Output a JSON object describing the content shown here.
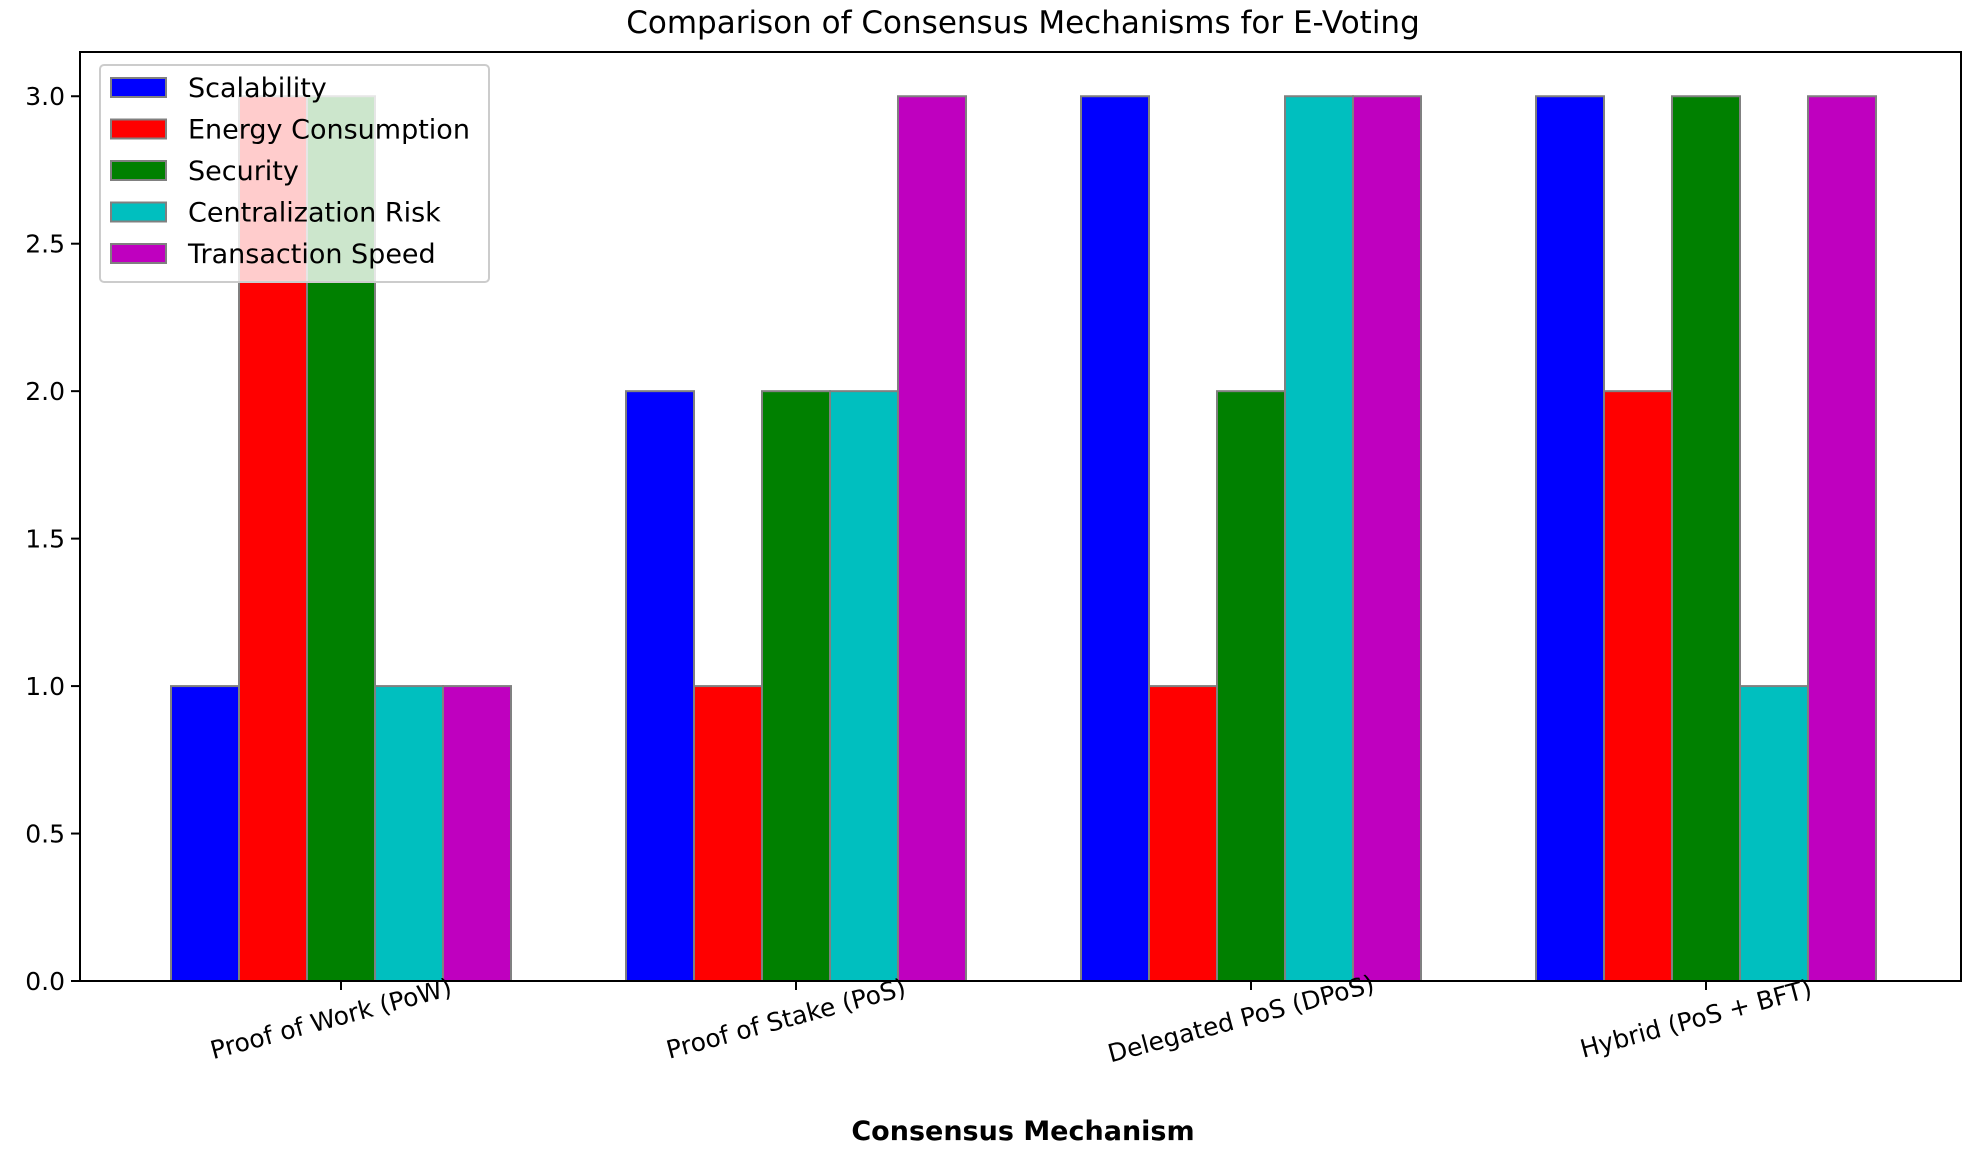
{
  "chart_data": {
    "type": "bar",
    "title": "Comparison of Consensus Mechanisms for E-Voting",
    "xlabel": "Consensus Mechanism",
    "ylabel": "",
    "ylim": [
      0,
      3.15
    ],
    "yticks": [
      "0.0",
      "0.5",
      "1.0",
      "1.5",
      "2.0",
      "2.5",
      "3.0"
    ],
    "ytick_values": [
      0,
      0.5,
      1.0,
      1.5,
      2.0,
      2.5,
      3.0
    ],
    "categories": [
      "Proof of Work (PoW)",
      "Proof of Stake (PoS)",
      "Delegated PoS (DPoS)",
      "Hybrid (PoS + BFT)"
    ],
    "series": [
      {
        "name": "Scalability",
        "color": "#0000ff",
        "values": [
          1,
          2,
          3,
          3
        ]
      },
      {
        "name": "Energy Consumption",
        "color": "#ff0000",
        "values": [
          3,
          1,
          1,
          2
        ]
      },
      {
        "name": "Security",
        "color": "#008000",
        "values": [
          3,
          2,
          2,
          3
        ]
      },
      {
        "name": "Centralization Risk",
        "color": "#00bfbf",
        "values": [
          1,
          2,
          3,
          1
        ]
      },
      {
        "name": "Transaction Speed",
        "color": "#bf00bf",
        "values": [
          1,
          3,
          3,
          3
        ]
      }
    ],
    "legend_position": "top-left",
    "grid": false
  }
}
